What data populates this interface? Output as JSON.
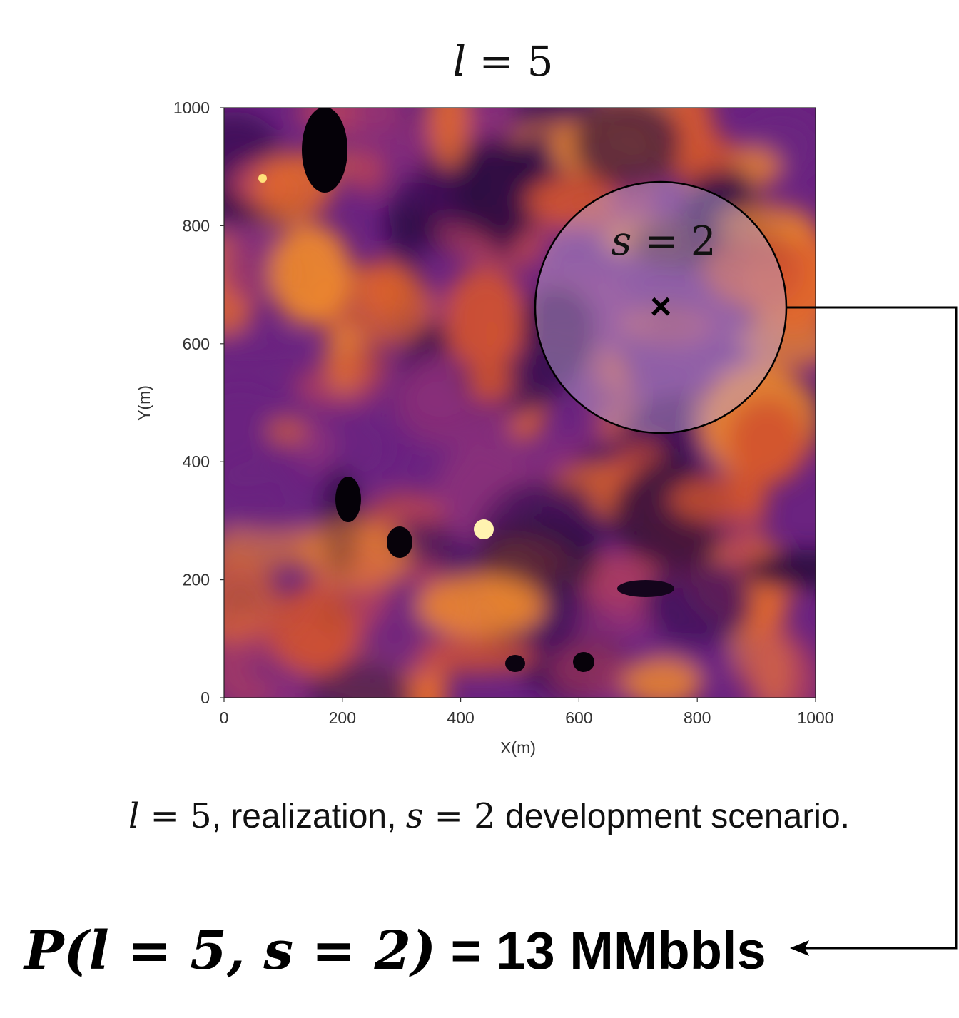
{
  "title": {
    "lhs": "l",
    "eq": " = ",
    "rhs": "5"
  },
  "circle_label": {
    "lhs": "s",
    "eq": " = ",
    "rhs": "2"
  },
  "marker_symbol": "×",
  "caption": {
    "l_var": "l",
    "l_eq": " = 5",
    "part1": ", realization, ",
    "s_var": "s",
    "s_eq": " = 2",
    "part2": " development scenario."
  },
  "result": {
    "lhs": "P(l = 5, s = 2)",
    "rhs": " = 13 MMbbls"
  },
  "map": {
    "xlabel": "X(m)",
    "ylabel": "Y(m)",
    "xlim": [
      0,
      1000
    ],
    "ylim": [
      0,
      1000
    ],
    "xticks": [
      "0",
      "200",
      "400",
      "600",
      "800",
      "1000"
    ],
    "yticks": [
      "0",
      "200",
      "400",
      "600",
      "800",
      "1000"
    ],
    "colormap": "inferno",
    "well": {
      "x": 740,
      "y": 660
    },
    "drainage_radius": 215
  }
}
